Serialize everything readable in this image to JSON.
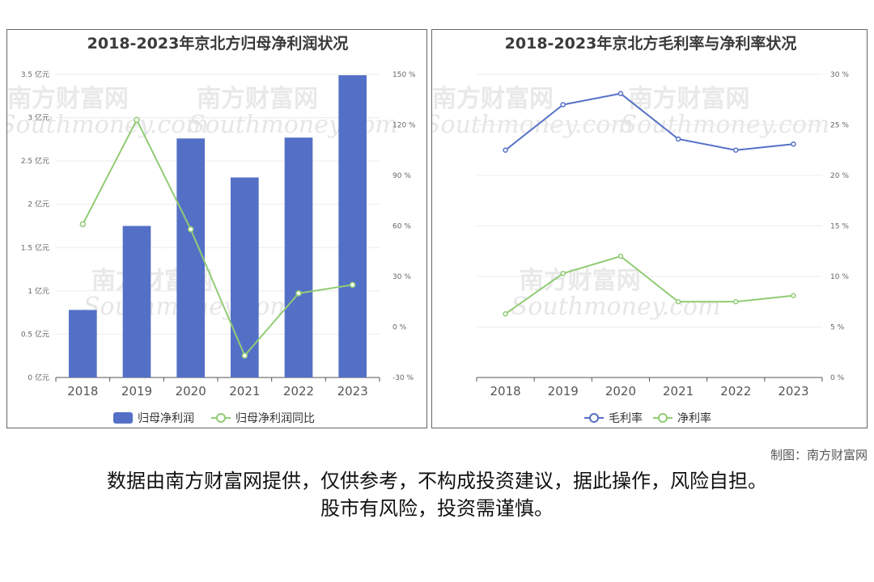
{
  "chart_data": [
    {
      "type": "bar",
      "title": "2018-2023年京北方归母净利润状况",
      "categories": [
        "2018",
        "2019",
        "2020",
        "2021",
        "2022",
        "2023"
      ],
      "series": [
        {
          "name": "归母净利润",
          "type": "bar",
          "axis": "left",
          "values": [
            0.78,
            1.75,
            2.76,
            2.31,
            2.77,
            3.49
          ]
        },
        {
          "name": "归母净利润同比",
          "type": "line",
          "axis": "right",
          "values": [
            61,
            123,
            58,
            -17,
            20,
            25
          ]
        }
      ],
      "y_left": {
        "ticks": [
          "0 亿元",
          "0.5 亿元",
          "1 亿元",
          "1.5 亿元",
          "2 亿元",
          "2.5 亿元",
          "3 亿元",
          "3.5 亿元"
        ],
        "range": [
          0,
          3.5
        ]
      },
      "y_right": {
        "ticks": [
          "-30 %",
          "0 %",
          "30 %",
          "60 %",
          "90 %",
          "120 %",
          "150 %"
        ],
        "range": [
          -30,
          150
        ]
      },
      "legend": "bottom",
      "colors": {
        "bar": "#5470c6",
        "line": "#91cc75"
      }
    },
    {
      "type": "line",
      "title": "2018-2023年京北方毛利率与净利率状况",
      "categories": [
        "2018",
        "2019",
        "2020",
        "2021",
        "2022",
        "2023"
      ],
      "series": [
        {
          "name": "毛利率",
          "values": [
            22.5,
            27.0,
            28.1,
            23.6,
            22.5,
            23.1
          ]
        },
        {
          "name": "净利率",
          "values": [
            6.3,
            10.3,
            12.0,
            7.5,
            7.5,
            8.1
          ]
        }
      ],
      "y_right": {
        "ticks": [
          "0 %",
          "5 %",
          "10 %",
          "15 %",
          "20 %",
          "25 %",
          "30 %"
        ],
        "range": [
          0,
          30
        ]
      },
      "legend": "bottom",
      "colors": {
        "毛利率": "#5470c6",
        "净利率": "#91cc75"
      }
    }
  ],
  "watermark": {
    "cn": "南方财富网",
    "en": "Southmoney.com"
  },
  "credit": "制图：南方财富网",
  "disclaimer": {
    "line1": "数据由南方财富网提供，仅供参考，不构成投资建议，据此操作，风险自担。",
    "line2": "股市有风险，投资需谨慎。"
  }
}
